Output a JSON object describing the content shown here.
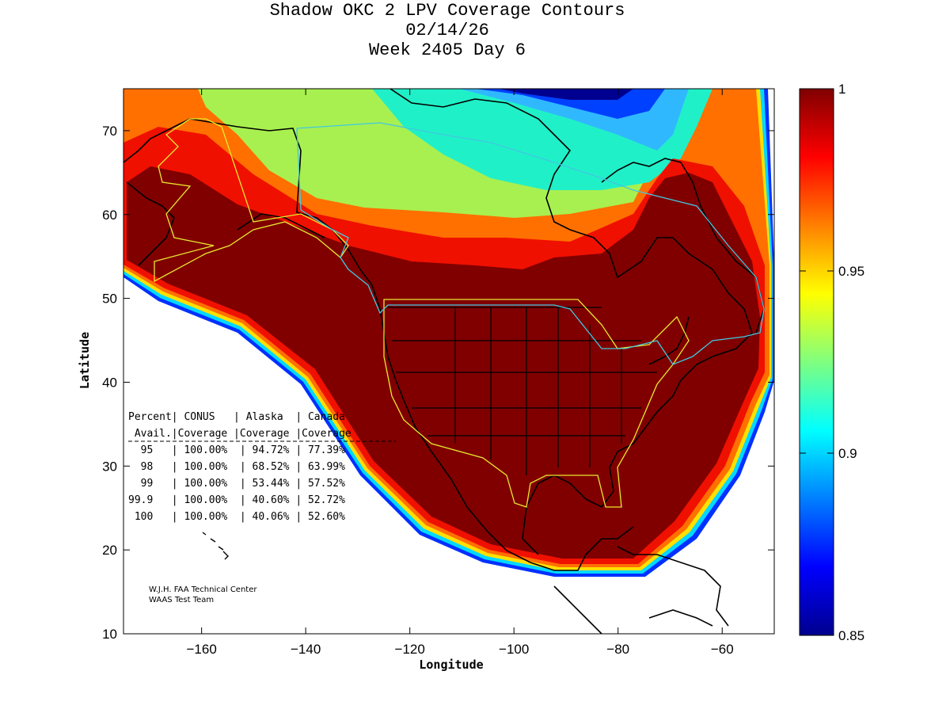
{
  "title": {
    "line1": "Shadow OKC 2 LPV Coverage Contours",
    "line2": "02/14/26",
    "line3": "Week 2405 Day 6"
  },
  "axes": {
    "xlabel": "Longitude",
    "ylabel": "Latitude",
    "xlim": [
      -175,
      -50
    ],
    "ylim": [
      10,
      75
    ],
    "xticks": [
      -160,
      -140,
      -120,
      -100,
      -80,
      -60
    ],
    "yticks": [
      10,
      20,
      30,
      40,
      50,
      60,
      70
    ]
  },
  "colorbar": {
    "range": [
      0.85,
      1
    ],
    "ticks": [
      "1",
      "0.95",
      "0.9",
      "0.85"
    ]
  },
  "table": {
    "header1": "Percent| CONUS   | Alaska  | Canada",
    "header2": " Avail.|Coverage |Coverage |Coverage",
    "rows": [
      "  95   | 100.00%  | 94.72% | 77.39%",
      "  98   | 100.00%  | 68.52% | 63.99%",
      "  99   | 100.00%  | 53.44% | 57.52%",
      "99.9   | 100.00%  | 40.60% | 52.72%",
      " 100   | 100.00%  | 40.06% | 52.60%"
    ]
  },
  "credit": {
    "line1": "W.J.H. FAA Technical Center",
    "line2": "WAAS Test Team"
  },
  "colors": {
    "coverage_full": "#800000",
    "boundary_yellow": "#e8e830",
    "boundary_cyan": "#40c8e0"
  }
}
